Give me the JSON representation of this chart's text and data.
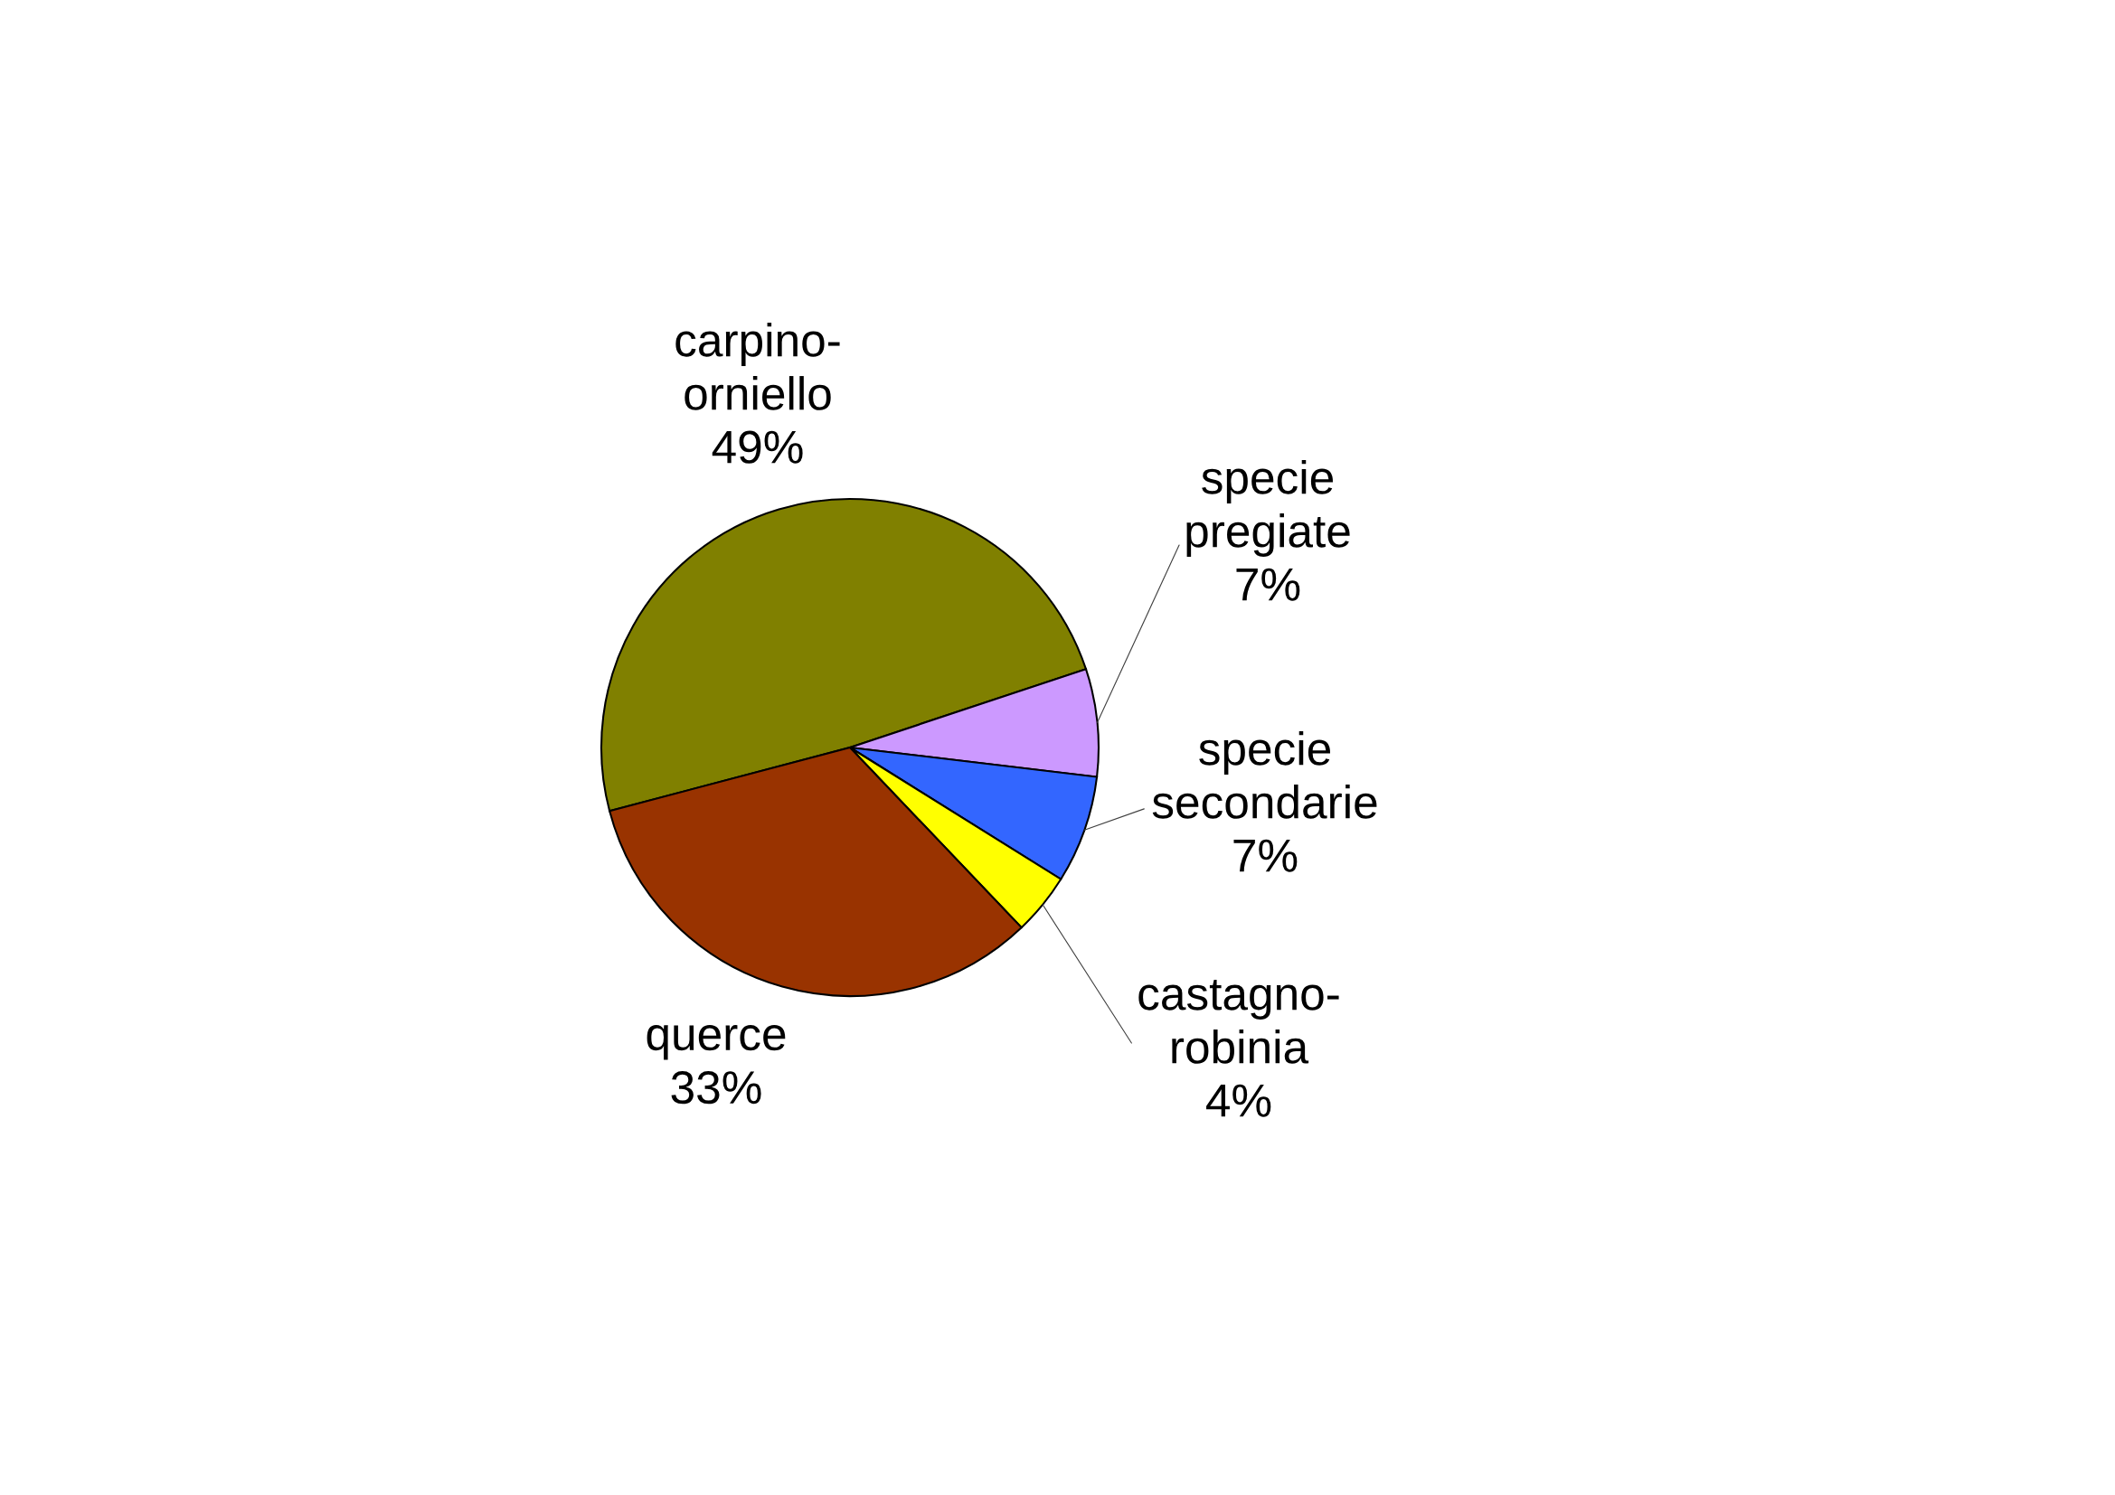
{
  "chart_data": {
    "type": "pie",
    "categories": [
      "carpino-orniello",
      "specie pregiate",
      "specie secondarie",
      "castagno-robinia",
      "querce"
    ],
    "values": [
      49,
      7,
      7,
      4,
      33
    ],
    "value_labels": [
      "49%",
      "7%",
      "7%",
      "4%",
      "33%"
    ],
    "colors": [
      "#808000",
      "#cc99ff",
      "#3366ff",
      "#ffff00",
      "#993300"
    ]
  }
}
